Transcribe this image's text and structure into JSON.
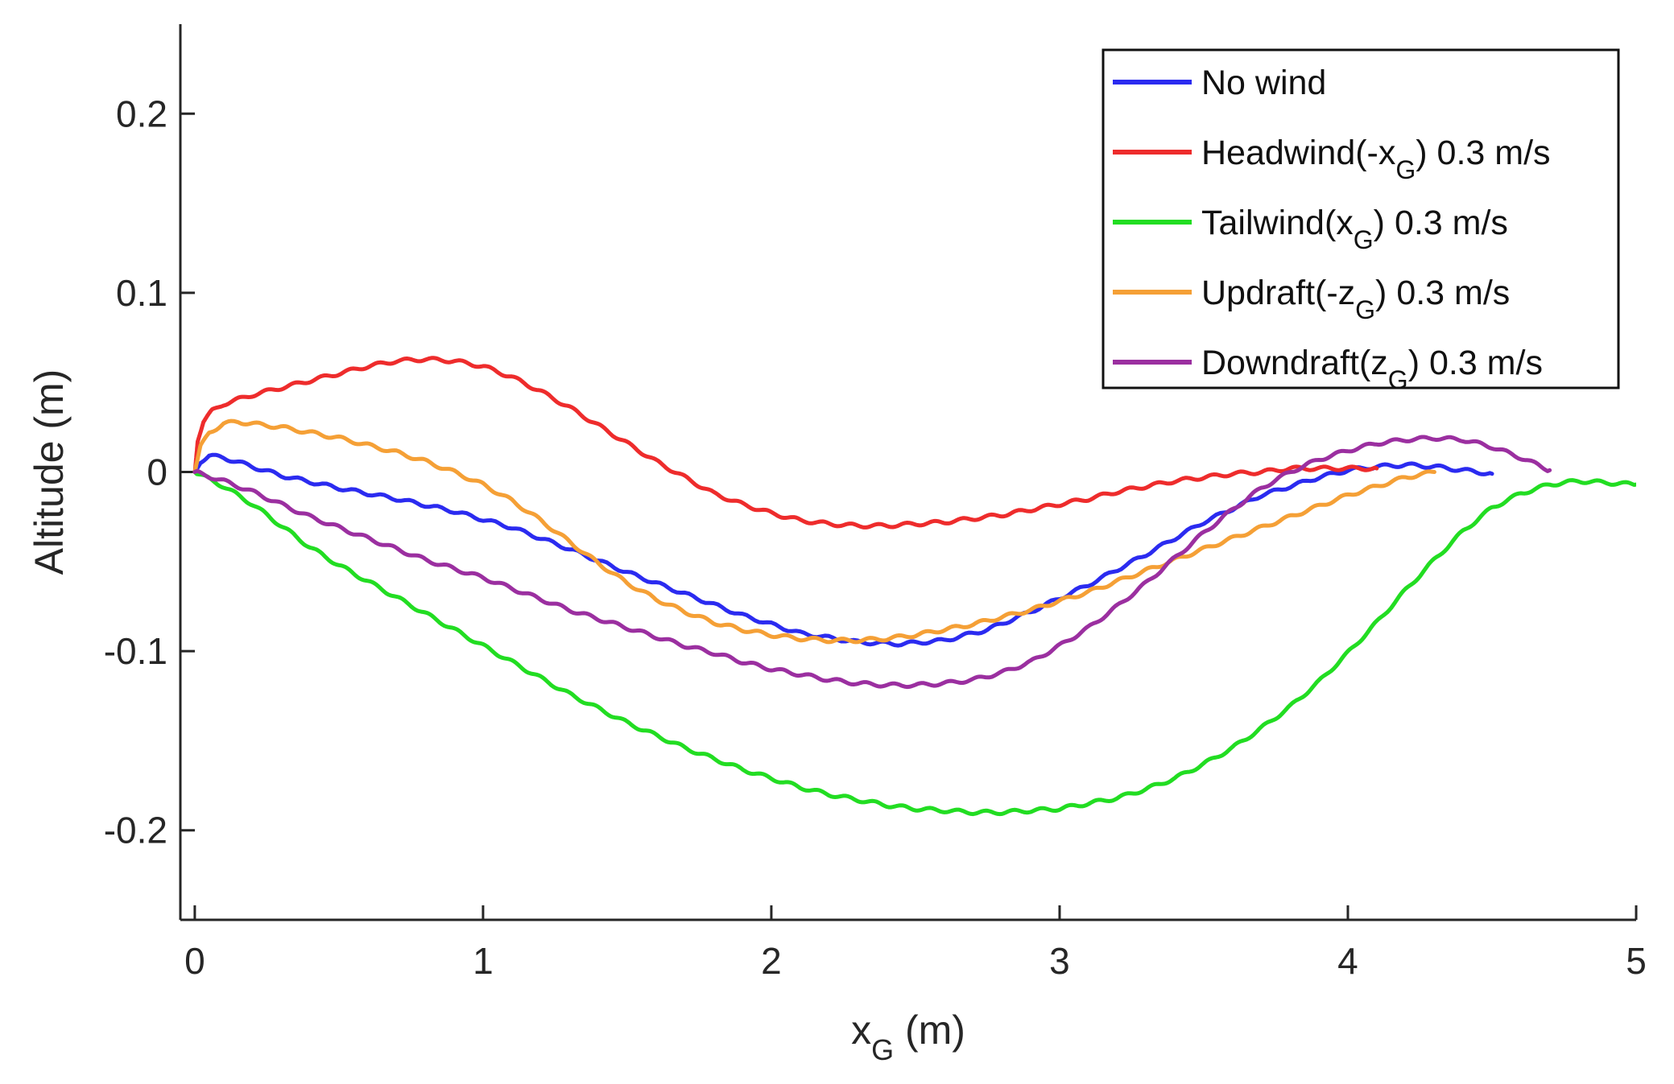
{
  "chart_data": {
    "type": "line",
    "title": "",
    "xlabel": "x",
    "xlabel_sub": "G",
    "xlabel_unit": " (m)",
    "ylabel": "Altitude (m)",
    "xlim": [
      -0.05,
      5
    ],
    "ylim": [
      -0.25,
      0.25
    ],
    "x_ticks": [
      0,
      1,
      2,
      3,
      4,
      5
    ],
    "x_tick_labels": [
      "0",
      "1",
      "2",
      "3",
      "4",
      "5"
    ],
    "y_ticks": [
      0.2,
      0.1,
      0,
      -0.1,
      -0.2
    ],
    "y_tick_labels": [
      "0.2",
      "0.1",
      "0",
      "-0.1",
      "-0.2"
    ],
    "grid": false,
    "legend_position": "top-right",
    "series": [
      {
        "name": "No wind",
        "legend": {
          "pre": "No wind",
          "sub": "",
          "post": ""
        },
        "color": "#2b2bf0",
        "x": [
          0,
          0.02,
          0.05,
          0.1,
          0.2,
          0.3,
          0.5,
          0.7,
          0.9,
          1.1,
          1.3,
          1.5,
          1.7,
          1.9,
          2.1,
          2.3,
          2.45,
          2.6,
          2.75,
          2.9,
          3.1,
          3.3,
          3.5,
          3.7,
          3.9,
          4.0,
          4.1,
          4.2,
          4.3,
          4.4,
          4.5
        ],
        "y": [
          0,
          0.006,
          0.009,
          0.008,
          0.003,
          -0.002,
          -0.009,
          -0.015,
          -0.022,
          -0.031,
          -0.043,
          -0.056,
          -0.068,
          -0.08,
          -0.09,
          -0.095,
          -0.096,
          -0.094,
          -0.088,
          -0.078,
          -0.063,
          -0.046,
          -0.028,
          -0.013,
          -0.003,
          0.001,
          0.003,
          0.004,
          0.003,
          0.001,
          -0.001
        ]
      },
      {
        "name": "Headwind(-xG) 0.3 m/s",
        "legend": {
          "pre": "Headwind(-x",
          "sub": "G",
          "post": ") 0.3 m/s"
        },
        "color": "#ee2c2c",
        "x": [
          0,
          0.01,
          0.03,
          0.06,
          0.1,
          0.2,
          0.3,
          0.4,
          0.5,
          0.6,
          0.7,
          0.8,
          0.9,
          1.0,
          1.1,
          1.2,
          1.3,
          1.4,
          1.5,
          1.6,
          1.7,
          1.8,
          1.9,
          2.0,
          2.1,
          2.2,
          2.3,
          2.4,
          2.5,
          2.6,
          2.7,
          2.8,
          2.9,
          3.0,
          3.1,
          3.2,
          3.3,
          3.4,
          3.5,
          3.6,
          3.7,
          3.8,
          3.9,
          4.0,
          4.1
        ],
        "y": [
          0,
          0.018,
          0.028,
          0.034,
          0.038,
          0.043,
          0.047,
          0.051,
          0.055,
          0.059,
          0.062,
          0.063,
          0.062,
          0.059,
          0.053,
          0.045,
          0.036,
          0.026,
          0.016,
          0.006,
          -0.003,
          -0.012,
          -0.018,
          -0.023,
          -0.027,
          -0.029,
          -0.03,
          -0.03,
          -0.029,
          -0.028,
          -0.026,
          -0.024,
          -0.021,
          -0.018,
          -0.015,
          -0.011,
          -0.008,
          -0.005,
          -0.003,
          -0.001,
          0.0,
          0.002,
          0.002,
          0.002,
          0.002
        ]
      },
      {
        "name": "Tailwind(xG) 0.3 m/s",
        "legend": {
          "pre": "Tailwind(x",
          "sub": "G",
          "post": ") 0.3 m/s"
        },
        "color": "#22dd22",
        "x": [
          0,
          0.1,
          0.2,
          0.3,
          0.4,
          0.5,
          0.6,
          0.7,
          0.8,
          0.9,
          1.0,
          1.1,
          1.2,
          1.3,
          1.4,
          1.5,
          1.6,
          1.7,
          1.8,
          1.9,
          2.0,
          2.1,
          2.2,
          2.3,
          2.4,
          2.5,
          2.6,
          2.7,
          2.8,
          2.9,
          3.0,
          3.1,
          3.2,
          3.3,
          3.4,
          3.5,
          3.6,
          3.7,
          3.8,
          3.9,
          4.0,
          4.1,
          4.2,
          4.3,
          4.4,
          4.5,
          4.6,
          4.7,
          4.8,
          4.9,
          5.0
        ],
        "y": [
          0,
          -0.008,
          -0.018,
          -0.03,
          -0.042,
          -0.052,
          -0.061,
          -0.07,
          -0.079,
          -0.088,
          -0.097,
          -0.106,
          -0.115,
          -0.124,
          -0.132,
          -0.14,
          -0.147,
          -0.154,
          -0.16,
          -0.166,
          -0.171,
          -0.176,
          -0.18,
          -0.183,
          -0.186,
          -0.188,
          -0.189,
          -0.19,
          -0.19,
          -0.189,
          -0.188,
          -0.185,
          -0.182,
          -0.177,
          -0.171,
          -0.163,
          -0.154,
          -0.143,
          -0.131,
          -0.117,
          -0.101,
          -0.084,
          -0.066,
          -0.049,
          -0.033,
          -0.02,
          -0.012,
          -0.007,
          -0.005,
          -0.006,
          -0.007
        ]
      },
      {
        "name": "Updraft(-zG) 0.3 m/s",
        "legend": {
          "pre": "Updraft(-z",
          "sub": "G",
          "post": ") 0.3 m/s"
        },
        "color": "#f5a036",
        "x": [
          0,
          0.02,
          0.05,
          0.1,
          0.15,
          0.2,
          0.3,
          0.4,
          0.5,
          0.6,
          0.7,
          0.8,
          0.9,
          1.0,
          1.1,
          1.2,
          1.3,
          1.4,
          1.5,
          1.6,
          1.7,
          1.8,
          1.9,
          2.0,
          2.1,
          2.2,
          2.3,
          2.4,
          2.5,
          2.6,
          2.7,
          2.8,
          2.9,
          3.0,
          3.1,
          3.2,
          3.3,
          3.4,
          3.5,
          3.6,
          3.7,
          3.8,
          3.9,
          4.0,
          4.1,
          4.2,
          4.3
        ],
        "y": [
          0,
          0.014,
          0.022,
          0.027,
          0.028,
          0.027,
          0.025,
          0.022,
          0.019,
          0.015,
          0.011,
          0.006,
          0.0,
          -0.007,
          -0.016,
          -0.027,
          -0.039,
          -0.051,
          -0.062,
          -0.071,
          -0.078,
          -0.084,
          -0.088,
          -0.091,
          -0.093,
          -0.094,
          -0.094,
          -0.093,
          -0.091,
          -0.088,
          -0.085,
          -0.081,
          -0.077,
          -0.072,
          -0.067,
          -0.061,
          -0.055,
          -0.049,
          -0.043,
          -0.037,
          -0.031,
          -0.025,
          -0.019,
          -0.013,
          -0.008,
          -0.003,
          0.0
        ]
      },
      {
        "name": "Downdraft(zG) 0.3 m/s",
        "legend": {
          "pre": "Downdraft(z",
          "sub": "G",
          "post": ") 0.3 m/s"
        },
        "color": "#9b2fa0",
        "x": [
          0,
          0.1,
          0.2,
          0.3,
          0.4,
          0.5,
          0.6,
          0.7,
          0.8,
          0.9,
          1.0,
          1.1,
          1.2,
          1.3,
          1.4,
          1.5,
          1.6,
          1.7,
          1.8,
          1.9,
          2.0,
          2.1,
          2.2,
          2.3,
          2.4,
          2.5,
          2.6,
          2.7,
          2.8,
          2.9,
          3.0,
          3.1,
          3.2,
          3.3,
          3.4,
          3.5,
          3.6,
          3.7,
          3.8,
          3.9,
          4.0,
          4.1,
          4.2,
          4.3,
          4.4,
          4.5,
          4.6,
          4.7
        ],
        "y": [
          0,
          -0.005,
          -0.011,
          -0.018,
          -0.025,
          -0.031,
          -0.037,
          -0.043,
          -0.049,
          -0.054,
          -0.059,
          -0.065,
          -0.071,
          -0.077,
          -0.082,
          -0.087,
          -0.092,
          -0.097,
          -0.101,
          -0.106,
          -0.11,
          -0.113,
          -0.116,
          -0.118,
          -0.119,
          -0.119,
          -0.118,
          -0.116,
          -0.112,
          -0.106,
          -0.097,
          -0.087,
          -0.075,
          -0.062,
          -0.048,
          -0.034,
          -0.021,
          -0.009,
          0.0,
          0.007,
          0.012,
          0.016,
          0.018,
          0.019,
          0.018,
          0.014,
          0.008,
          0.001
        ]
      }
    ]
  }
}
